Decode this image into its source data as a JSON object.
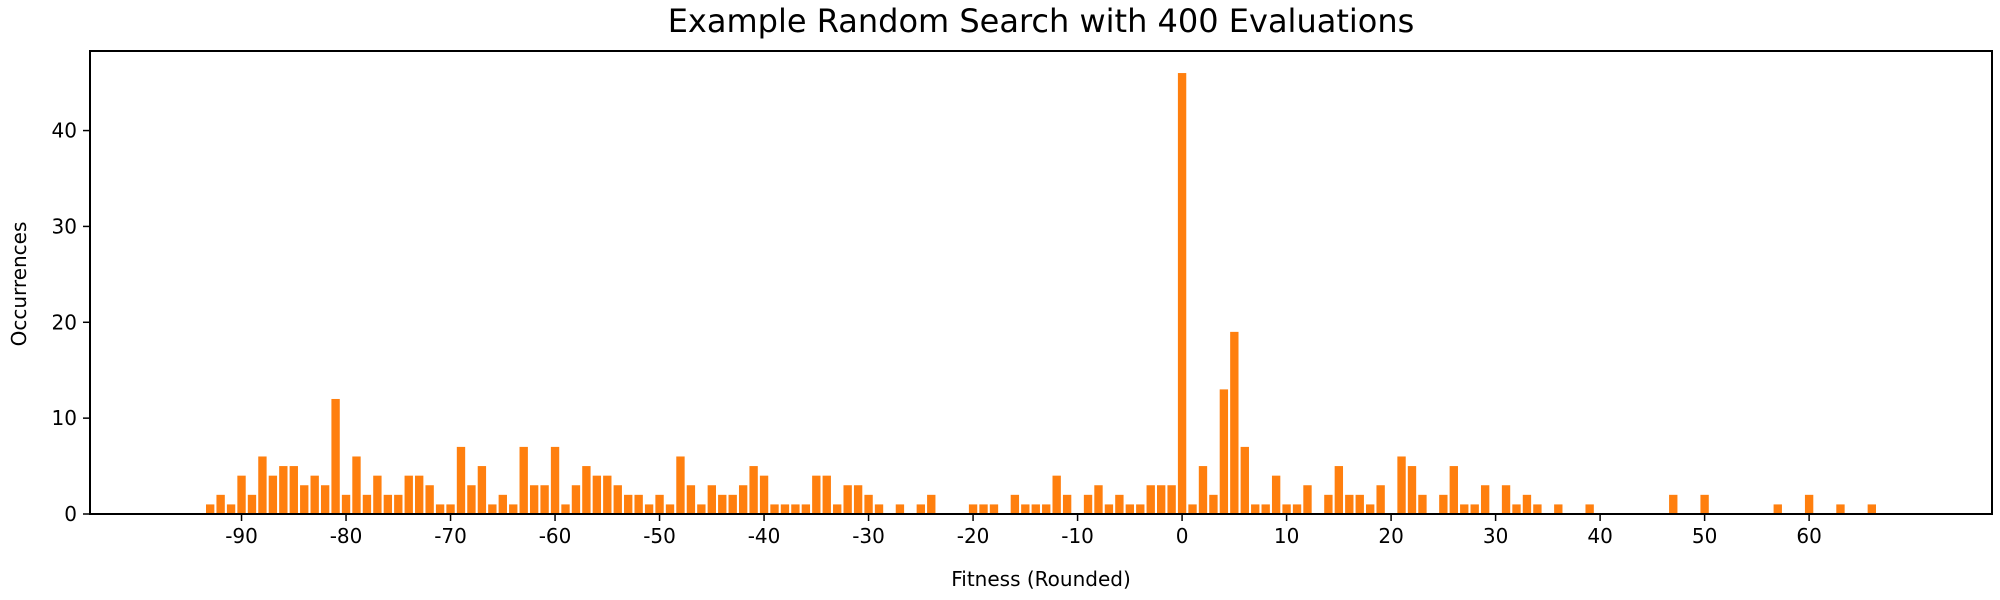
{
  "chart_data": {
    "type": "bar",
    "title": "Example Random Search with 400 Evaluations",
    "xlabel": "Fitness (Rounded)",
    "ylabel": "Occurrences",
    "xlim": [
      -104.5,
      77.5
    ],
    "ylim": [
      0,
      48.3
    ],
    "xticks": [
      -90,
      -80,
      -70,
      -60,
      -50,
      -40,
      -30,
      -20,
      -10,
      0,
      10,
      20,
      30,
      40,
      50,
      60
    ],
    "yticks": [
      0,
      10,
      20,
      30,
      40
    ],
    "bar_color": "#ff7f0e",
    "grid": false,
    "x": [
      -93,
      -92,
      -91,
      -90,
      -89,
      -88,
      -87,
      -86,
      -85,
      -84,
      -83,
      -82,
      -81,
      -80,
      -79,
      -78,
      -77,
      -76,
      -75,
      -74,
      -73,
      -72,
      -71,
      -70,
      -69,
      -68,
      -67,
      -66,
      -65,
      -64,
      -63,
      -62,
      -61,
      -60,
      -59,
      -58,
      -57,
      -56,
      -55,
      -54,
      -53,
      -52,
      -51,
      -50,
      -49,
      -48,
      -47,
      -46,
      -45,
      -44,
      -43,
      -42,
      -41,
      -40,
      -39,
      -38,
      -37,
      -36,
      -35,
      -34,
      -33,
      -32,
      -31,
      -30,
      -29,
      -27,
      -25,
      -24,
      -20,
      -19,
      -18,
      -16,
      -15,
      -14,
      -13,
      -12,
      -11,
      -9,
      -8,
      -7,
      -6,
      -5,
      -4,
      -3,
      -2,
      -1,
      0,
      1,
      2,
      3,
      4,
      5,
      6,
      7,
      8,
      9,
      10,
      11,
      12,
      14,
      15,
      16,
      17,
      18,
      19,
      21,
      22,
      23,
      25,
      26,
      27,
      28,
      29,
      31,
      32,
      33,
      34,
      36,
      39,
      47,
      50,
      57,
      60,
      63,
      66
    ],
    "values": [
      1,
      2,
      1,
      4,
      2,
      6,
      4,
      5,
      5,
      3,
      4,
      3,
      12,
      2,
      6,
      2,
      4,
      2,
      2,
      4,
      4,
      3,
      1,
      1,
      7,
      3,
      5,
      1,
      2,
      1,
      7,
      3,
      3,
      7,
      1,
      3,
      5,
      4,
      4,
      3,
      2,
      2,
      1,
      2,
      1,
      6,
      3,
      1,
      3,
      2,
      2,
      3,
      5,
      4,
      1,
      1,
      1,
      1,
      4,
      4,
      1,
      3,
      3,
      2,
      1,
      1,
      1,
      2,
      1,
      1,
      1,
      2,
      1,
      1,
      1,
      4,
      2,
      2,
      3,
      1,
      2,
      1,
      1,
      3,
      3,
      3,
      46,
      1,
      5,
      2,
      13,
      19,
      7,
      1,
      1,
      4,
      1,
      1,
      3,
      2,
      5,
      2,
      2,
      1,
      3,
      6,
      5,
      2,
      2,
      5,
      1,
      1,
      3,
      3,
      1,
      2,
      1,
      1,
      1,
      2,
      2,
      1,
      2,
      1,
      1
    ]
  }
}
